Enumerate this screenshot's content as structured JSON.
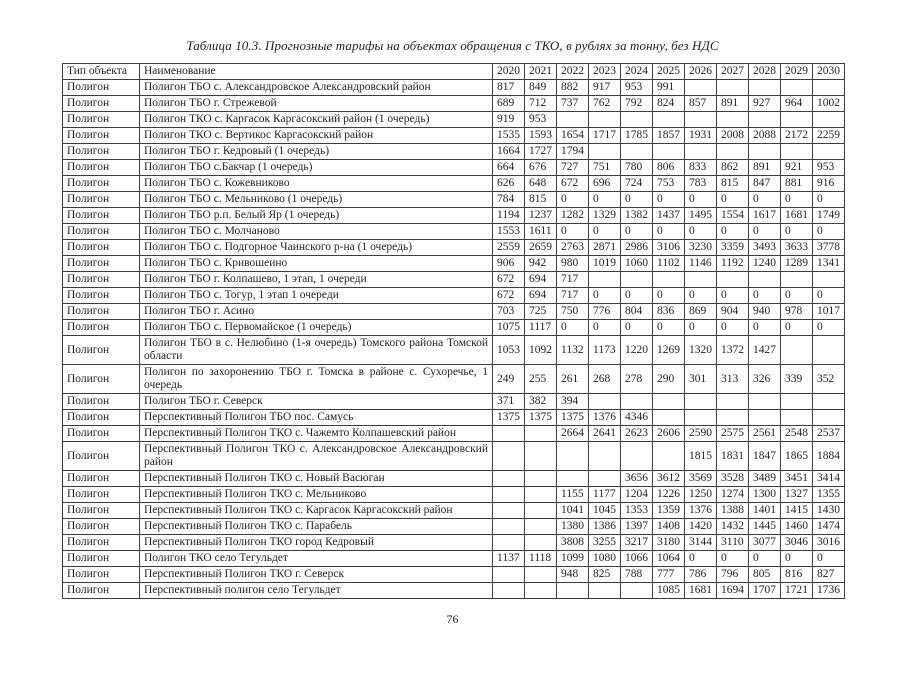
{
  "page": {
    "title": "Таблица 10.3. Прогнозные тарифы на объектах обращения с ТКО, в рублях за тонну, без НДС",
    "page_number": "76"
  },
  "table": {
    "headers": [
      "Тип объекта",
      "Наименование",
      "2020",
      "2021",
      "2022",
      "2023",
      "2024",
      "2025",
      "2026",
      "2027",
      "2028",
      "2029",
      "2030"
    ],
    "rows": [
      {
        "type": "Полигон",
        "name": "Полигон ТБО с. Александровское Александровский район",
        "values": [
          "817",
          "849",
          "882",
          "917",
          "953",
          "991",
          "",
          "",
          "",
          "",
          ""
        ]
      },
      {
        "type": "Полигон",
        "name": "Полигон ТБО г. Стрежевой",
        "values": [
          "689",
          "712",
          "737",
          "762",
          "792",
          "824",
          "857",
          "891",
          "927",
          "964",
          "1002"
        ]
      },
      {
        "type": "Полигон",
        "name": "Полигон ТКО с. Каргасок Каргасокский район (1 очередь)",
        "values": [
          "919",
          "953",
          "",
          "",
          "",
          "",
          "",
          "",
          "",
          "",
          ""
        ]
      },
      {
        "type": "Полигон",
        "name": "Полигон ТКО с. Вертикос Каргасокский район",
        "values": [
          "1535",
          "1593",
          "1654",
          "1717",
          "1785",
          "1857",
          "1931",
          "2008",
          "2088",
          "2172",
          "2259"
        ]
      },
      {
        "type": "Полигон",
        "name": "Полигон ТБО г. Кедровый (1 очередь)",
        "values": [
          "1664",
          "1727",
          "1794",
          "",
          "",
          "",
          "",
          "",
          "",
          "",
          ""
        ]
      },
      {
        "type": "Полигон",
        "name": "Полигон ТБО с.Бакчар (1 очередь)",
        "values": [
          "664",
          "676",
          "727",
          "751",
          "780",
          "806",
          "833",
          "862",
          "891",
          "921",
          "953"
        ]
      },
      {
        "type": "Полигон",
        "name": "Полигон ТБО с. Кожевниково",
        "values": [
          "626",
          "648",
          "672",
          "696",
          "724",
          "753",
          "783",
          "815",
          "847",
          "881",
          "916"
        ]
      },
      {
        "type": "Полигон",
        "name": "Полигон ТБО с. Мельниково (1 очередь)",
        "values": [
          "784",
          "815",
          "0",
          "0",
          "0",
          "0",
          "0",
          "0",
          "0",
          "0",
          "0"
        ]
      },
      {
        "type": "Полигон",
        "name": "Полигон ТБО р.п. Белый Яр (1 очередь)",
        "values": [
          "1194",
          "1237",
          "1282",
          "1329",
          "1382",
          "1437",
          "1495",
          "1554",
          "1617",
          "1681",
          "1749"
        ]
      },
      {
        "type": "Полигон",
        "name": "Полигон ТБО с. Молчаново",
        "values": [
          "1553",
          "1611",
          "0",
          "0",
          "0",
          "0",
          "0",
          "0",
          "0",
          "0",
          "0"
        ]
      },
      {
        "type": "Полигон",
        "name": "Полигон ТБО с. Подгорное Чаинского р-на (1 очередь)",
        "values": [
          "2559",
          "2659",
          "2763",
          "2871",
          "2986",
          "3106",
          "3230",
          "3359",
          "3493",
          "3633",
          "3778"
        ]
      },
      {
        "type": "Полигон",
        "name": "Полигон ТБО с. Кривошеино",
        "values": [
          "906",
          "942",
          "980",
          "1019",
          "1060",
          "1102",
          "1146",
          "1192",
          "1240",
          "1289",
          "1341"
        ]
      },
      {
        "type": "Полигон",
        "name": "Полигон ТБО г. Колпашево, 1 этап, 1 очереди",
        "values": [
          "672",
          "694",
          "717",
          "",
          "",
          "",
          "",
          "",
          "",
          "",
          ""
        ]
      },
      {
        "type": "Полигон",
        "name": "Полигон ТБО с. Тогур, 1 этап 1 очереди",
        "values": [
          "672",
          "694",
          "717",
          "0",
          "0",
          "0",
          "0",
          "0",
          "0",
          "0",
          "0"
        ]
      },
      {
        "type": "Полигон",
        "name": "Полигон ТБО г. Асино",
        "values": [
          "703",
          "725",
          "750",
          "776",
          "804",
          "836",
          "869",
          "904",
          "940",
          "978",
          "1017"
        ]
      },
      {
        "type": "Полигон",
        "name": "Полигон ТБО с. Первомайское (1 очередь)",
        "values": [
          "1075",
          "1117",
          "0",
          "0",
          "0",
          "0",
          "0",
          "0",
          "0",
          "0",
          "0"
        ]
      },
      {
        "type": "Полигон",
        "name": "Полигон ТБО в с. Нелюбино (1-я очередь) Томского района Томской области",
        "values": [
          "1053",
          "1092",
          "1132",
          "1173",
          "1220",
          "1269",
          "1320",
          "1372",
          "1427",
          "",
          ""
        ]
      },
      {
        "type": "Полигон",
        "name": "Полигон по захоронению ТБО г. Томска в районе с. Сухоречье, 1 очередь",
        "values": [
          "249",
          "255",
          "261",
          "268",
          "278",
          "290",
          "301",
          "313",
          "326",
          "339",
          "352"
        ]
      },
      {
        "type": "Полигон",
        "name": "Полигон ТБО г. Северск",
        "values": [
          "371",
          "382",
          "394",
          "",
          "",
          "",
          "",
          "",
          "",
          "",
          ""
        ]
      },
      {
        "type": "Полигон",
        "name": "Перспективный Полигон ТБО пос. Самусь",
        "values": [
          "1375",
          "1375",
          "1375",
          "1376",
          "4346",
          "",
          "",
          "",
          "",
          "",
          ""
        ]
      },
      {
        "type": "Полигон",
        "name": "Перспективный Полигон ТКО с. Чажемто Колпашевский район",
        "values": [
          "",
          "",
          "2664",
          "2641",
          "2623",
          "2606",
          "2590",
          "2575",
          "2561",
          "2548",
          "2537"
        ]
      },
      {
        "type": "Полигон",
        "name": "Перспективный Полигон ТКО с. Александровское Александровский район",
        "values": [
          "",
          "",
          "",
          "",
          "",
          "",
          "1815",
          "1831",
          "1847",
          "1865",
          "1884"
        ]
      },
      {
        "type": "Полигон",
        "name": "Перспективный Полигон ТКО с. Новый Васюган",
        "values": [
          "",
          "",
          "",
          "",
          "3656",
          "3612",
          "3569",
          "3528",
          "3489",
          "3451",
          "3414"
        ]
      },
      {
        "type": "Полигон",
        "name": "Перспективный Полигон ТКО с. Мельниково",
        "values": [
          "",
          "",
          "1155",
          "1177",
          "1204",
          "1226",
          "1250",
          "1274",
          "1300",
          "1327",
          "1355"
        ]
      },
      {
        "type": "Полигон",
        "name": "Перспективный Полигон ТКО с. Каргасок Каргасокский район",
        "values": [
          "",
          "",
          "1041",
          "1045",
          "1353",
          "1359",
          "1376",
          "1388",
          "1401",
          "1415",
          "1430"
        ]
      },
      {
        "type": "Полигон",
        "name": "Перспективный Полигон ТКО с. Парабель",
        "values": [
          "",
          "",
          "1380",
          "1386",
          "1397",
          "1408",
          "1420",
          "1432",
          "1445",
          "1460",
          "1474"
        ]
      },
      {
        "type": "Полигон",
        "name": "Перспективный Полигон ТКО город Кедровый",
        "values": [
          "",
          "",
          "3808",
          "3255",
          "3217",
          "3180",
          "3144",
          "3110",
          "3077",
          "3046",
          "3016"
        ]
      },
      {
        "type": "Полигон",
        "name": "Полигон ТКО село Тегульдет",
        "values": [
          "1137",
          "1118",
          "1099",
          "1080",
          "1066",
          "1064",
          "0",
          "0",
          "0",
          "0",
          "0"
        ]
      },
      {
        "type": "Полигон",
        "name": "Перспективный Полигон ТКО г. Северск",
        "values": [
          "",
          "",
          "948",
          "825",
          "788",
          "777",
          "786",
          "796",
          "805",
          "816",
          "827"
        ]
      },
      {
        "type": "Полигон",
        "name": "Перспективный полигон село Тегульдет",
        "values": [
          "",
          "",
          "",
          "",
          "",
          "1085",
          "1681",
          "1694",
          "1707",
          "1721",
          "1736"
        ]
      }
    ]
  }
}
